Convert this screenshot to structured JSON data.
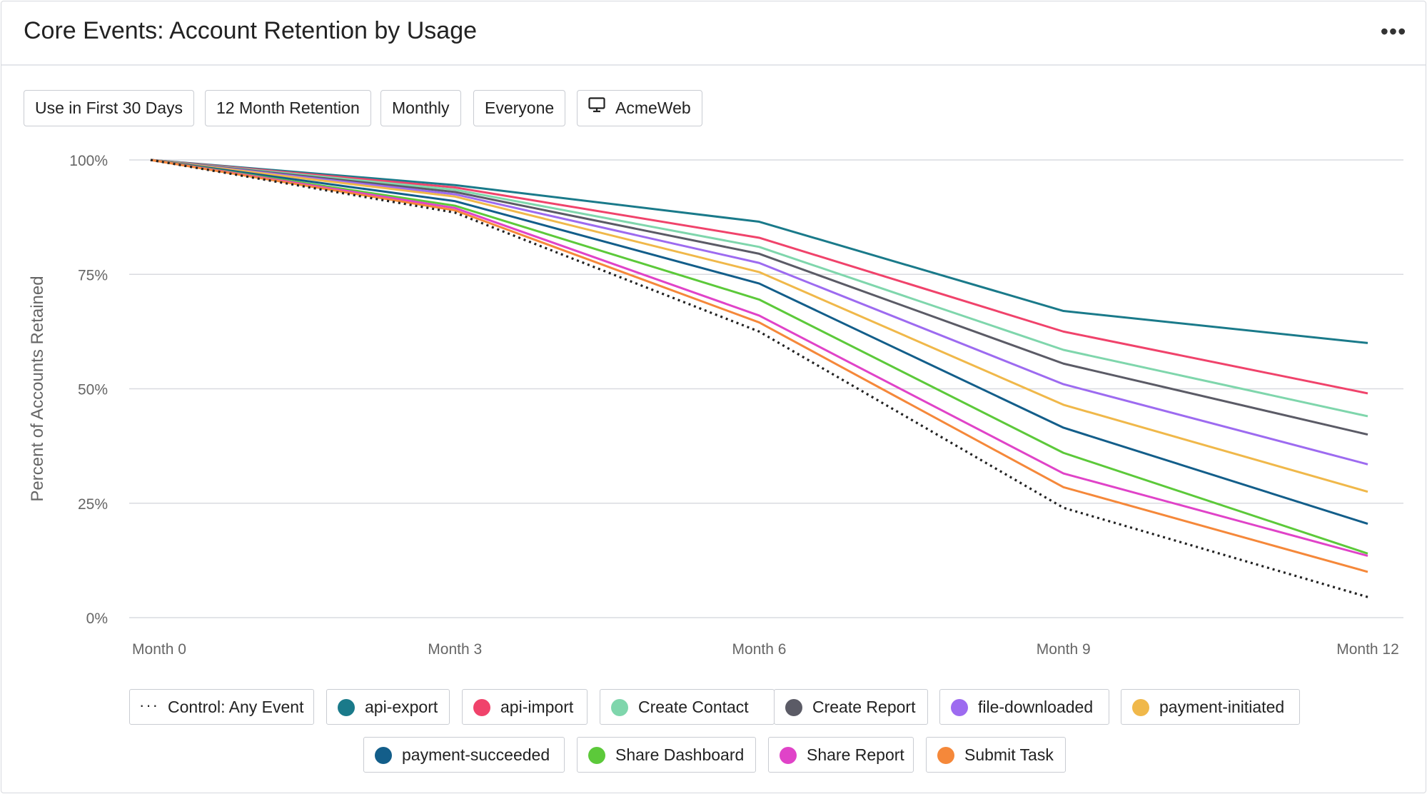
{
  "header": {
    "title": "Core Events: Account Retention by Usage",
    "more_label": "•••"
  },
  "filters": [
    {
      "label": "Use in First 30 Days",
      "icon": ""
    },
    {
      "label": "12 Month Retention",
      "icon": ""
    },
    {
      "label": "Monthly",
      "icon": ""
    },
    {
      "label": "Everyone",
      "icon": ""
    },
    {
      "label": "AcmeWeb",
      "icon": "monitor-icon"
    }
  ],
  "chart_data": {
    "type": "line",
    "title": "",
    "xlabel": "",
    "ylabel": "Percent of Accounts Retained",
    "x": [
      0,
      3,
      6,
      9,
      12
    ],
    "categories": [
      "Month 0",
      "Month 3",
      "Month 6",
      "Month 9",
      "Month 12"
    ],
    "y_ticks": [
      "0%",
      "25%",
      "50%",
      "75%",
      "100%"
    ],
    "ylim": [
      0,
      100
    ],
    "grid": true,
    "legend_position": "bottom",
    "series": [
      {
        "name": "Control: Any Event",
        "color": "#222222",
        "style": "dotted",
        "values": [
          100,
          88.5,
          62.5,
          24,
          4.5
        ]
      },
      {
        "name": "api-export",
        "color": "#1a7a8a",
        "style": "solid",
        "values": [
          100,
          94.5,
          86.5,
          67,
          60
        ]
      },
      {
        "name": "api-import",
        "color": "#f0436b",
        "style": "solid",
        "values": [
          100,
          94,
          83,
          62.5,
          49
        ]
      },
      {
        "name": "Create Contact",
        "color": "#7fd6ac",
        "style": "solid",
        "values": [
          100,
          93.5,
          81,
          58.5,
          44
        ]
      },
      {
        "name": "Create Report",
        "color": "#5b5b66",
        "style": "solid",
        "values": [
          100,
          93,
          79.5,
          55.5,
          40
        ]
      },
      {
        "name": "file-downloaded",
        "color": "#9d6bf0",
        "style": "solid",
        "values": [
          100,
          92.5,
          77.5,
          51,
          33.5
        ]
      },
      {
        "name": "payment-initiated",
        "color": "#f0b84a",
        "style": "solid",
        "values": [
          100,
          92,
          75.5,
          46.5,
          27.5
        ]
      },
      {
        "name": "payment-succeeded",
        "color": "#135e8a",
        "style": "solid",
        "values": [
          100,
          91,
          73,
          41.5,
          20.5
        ]
      },
      {
        "name": "Share Dashboard",
        "color": "#5cc93a",
        "style": "solid",
        "values": [
          100,
          90,
          69.5,
          36,
          14
        ]
      },
      {
        "name": "Share Report",
        "color": "#e043c8",
        "style": "solid",
        "values": [
          100,
          89.5,
          66,
          31.5,
          13.5
        ]
      },
      {
        "name": "Submit Task",
        "color": "#f5883a",
        "style": "solid",
        "values": [
          100,
          89,
          64.5,
          28.5,
          10
        ]
      }
    ]
  }
}
